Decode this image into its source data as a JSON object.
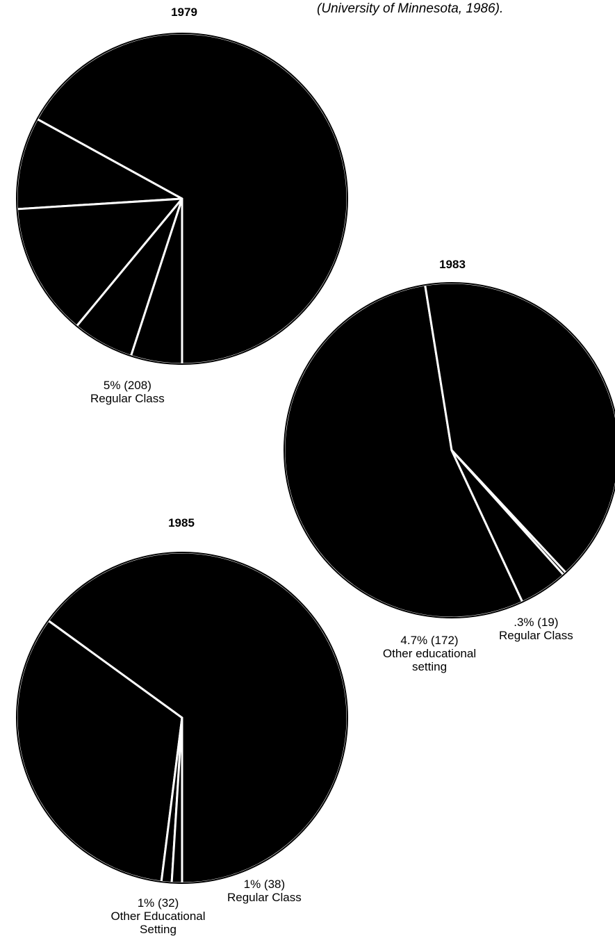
{
  "source_note": "(University of Minnesota, 1986).",
  "colors": {
    "slice_fill": "#000000",
    "slice_border": "#ffffff",
    "background": "#ffffff"
  },
  "chart_data": [
    {
      "type": "pie",
      "title": "1979",
      "slices": [
        {
          "percent": 67,
          "label_pct": "",
          "label_count": "",
          "label_text": ""
        },
        {
          "percent": 9,
          "label_pct": "",
          "label_count": "",
          "label_text": ""
        },
        {
          "percent": 13,
          "label_pct": "",
          "label_count": "",
          "label_text": ""
        },
        {
          "percent": 6,
          "label_pct": "",
          "label_count": "",
          "label_text": ""
        },
        {
          "percent": 5,
          "label_pct": "5%",
          "label_count": "(208)",
          "label_text": "Regular Class"
        }
      ]
    },
    {
      "type": "pie",
      "title": "1983",
      "slices": [
        {
          "percent": 54.4,
          "label_pct": "",
          "label_count": "",
          "label_text": ""
        },
        {
          "percent": 40.6,
          "label_pct": "",
          "label_count": "",
          "label_text": ""
        },
        {
          "percent": 0.3,
          "label_pct": ".3%",
          "label_count": "(19)",
          "label_text": "Regular Class"
        },
        {
          "percent": 4.7,
          "label_pct": "4.7%",
          "label_count": "(172)",
          "label_text": "Other educational setting"
        }
      ]
    },
    {
      "type": "pie",
      "title": "1985",
      "slices": [
        {
          "percent": 65,
          "label_pct": "",
          "label_count": "",
          "label_text": ""
        },
        {
          "percent": 33,
          "label_pct": "",
          "label_count": "",
          "label_text": ""
        },
        {
          "percent": 1,
          "label_pct": "1%",
          "label_count": "(38)",
          "label_text": "Regular Class"
        },
        {
          "percent": 1,
          "label_pct": "1%",
          "label_count": "(32)",
          "label_text": "Other Educational Setting"
        }
      ]
    }
  ]
}
